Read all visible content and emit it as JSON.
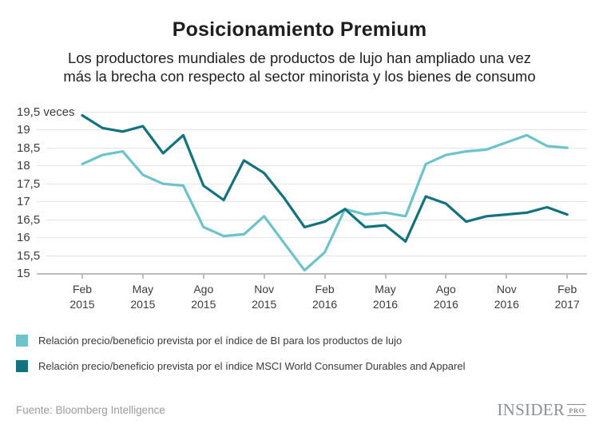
{
  "header": {
    "title": "Posicionamiento Premium",
    "subtitle_line1": "Los productores mundiales de productos de lujo han ampliado una vez",
    "subtitle_line2": "más la brecha con respecto al sector minorista y los bienes de consumo"
  },
  "chart_data": {
    "type": "line",
    "title": "Posicionamiento Premium",
    "subtitle": "Los productores mundiales de productos de lujo han ampliado una vez más la brecha con respecto al sector minorista y los bienes de consumo",
    "unit": "veces",
    "grid": true,
    "legend_position": "bottom",
    "ylim": [
      15,
      19.5
    ],
    "y_ticks": [
      {
        "value": 19.5,
        "label": "19,5 veces"
      },
      {
        "value": 19,
        "label": "19"
      },
      {
        "value": 18.5,
        "label": "18,5"
      },
      {
        "value": 18,
        "label": "18"
      },
      {
        "value": 17.5,
        "label": "17,5"
      },
      {
        "value": 17,
        "label": "17"
      },
      {
        "value": 16.5,
        "label": "16,5"
      },
      {
        "value": 16,
        "label": "16"
      },
      {
        "value": 15.5,
        "label": "15,5"
      },
      {
        "value": 15,
        "label": "15"
      }
    ],
    "x": [
      "Feb 2015",
      "Mar 2015",
      "Abr 2015",
      "May 2015",
      "Jun 2015",
      "Jul 2015",
      "Ago 2015",
      "Sep 2015",
      "Oct 2015",
      "Nov 2015",
      "Dic 2015",
      "Ene 2016",
      "Feb 2016",
      "Mar 2016",
      "Abr 2016",
      "May 2016",
      "Jun 2016",
      "Jul 2016",
      "Ago 2016",
      "Sep 2016",
      "Oct 2016",
      "Nov 2016",
      "Dic 2016",
      "Ene 2017",
      "Feb 2017"
    ],
    "x_tick_labels": [
      "Feb 2015",
      "May 2015",
      "Ago 2015",
      "Nov 2015",
      "Feb 2016",
      "May 2016",
      "Ago 2016",
      "Nov 2016",
      "Feb 2017"
    ],
    "x_tick_every_n_points": 3,
    "series": [
      {
        "name": "Relación precio/beneficio prevista por el índice de BI para los productos de lujo",
        "color": "#6cc3cc",
        "values": [
          18.05,
          18.3,
          18.4,
          17.75,
          17.5,
          17.45,
          16.3,
          16.05,
          16.1,
          16.6,
          15.85,
          15.1,
          15.6,
          16.8,
          16.65,
          16.7,
          16.6,
          18.05,
          18.3,
          18.4,
          18.45,
          18.65,
          18.85,
          18.55,
          18.5
        ]
      },
      {
        "name": "Relación precio/beneficio prevista por el índice MSCI World Consumer Durables and Apparel",
        "color": "#12737f",
        "values": [
          19.4,
          19.05,
          18.95,
          19.1,
          18.35,
          18.85,
          17.45,
          17.05,
          18.15,
          17.8,
          17.1,
          16.3,
          16.45,
          16.8,
          16.3,
          16.35,
          15.9,
          17.15,
          16.95,
          16.45,
          16.6,
          16.65,
          16.7,
          16.85,
          16.65
        ]
      }
    ]
  },
  "footer": {
    "source": "Fuente: Bloomberg Intelligence",
    "logo_main": "INSIDER",
    "logo_sub": "PRO"
  }
}
